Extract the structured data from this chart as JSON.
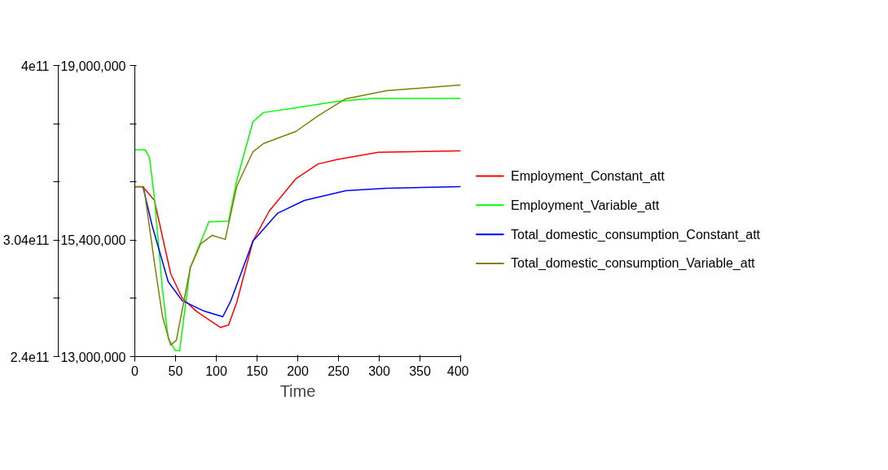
{
  "chart_data": {
    "type": "line",
    "xlabel": "Time",
    "xlim": [
      0,
      400
    ],
    "xticks": [
      0,
      50,
      100,
      150,
      200,
      250,
      300,
      350,
      400
    ],
    "ylim": [
      13000000,
      19000000
    ],
    "yticks": [
      {
        "value": 13000000,
        "label": "13,000,000"
      },
      {
        "value": 14200000,
        "label": null
      },
      {
        "value": 15400000,
        "label": "15,400,000"
      },
      {
        "value": 16600000,
        "label": null
      },
      {
        "value": 17800000,
        "label": null
      },
      {
        "value": 19000000,
        "label": "19,000,000"
      }
    ],
    "y2lim": [
      240000000000,
      400000000000
    ],
    "y2ticks": [
      {
        "value": 240000000000,
        "label": "2.4e11"
      },
      {
        "value": 272000000000,
        "label": null
      },
      {
        "value": 304000000000,
        "label": "3.04e11"
      },
      {
        "value": 336000000000,
        "label": null
      },
      {
        "value": 368000000000,
        "label": null
      },
      {
        "value": 400000000000,
        "label": "4e11"
      }
    ],
    "grid": false,
    "legend": "right",
    "line_style": "solid",
    "series": [
      {
        "name": "Employment_Constant_att",
        "color": "#ff0000",
        "x": [
          0,
          10,
          24,
          44,
          58,
          75,
          105,
          115,
          125,
          145,
          165,
          198,
          225,
          248,
          299,
          400
        ],
        "values": [
          16500000,
          16500000,
          16220000,
          14710000,
          14210000,
          13940000,
          13600000,
          13650000,
          14110000,
          15380000,
          16000000,
          16670000,
          16970000,
          17060000,
          17210000,
          17240000
        ]
      },
      {
        "name": "Employment_Variable_att",
        "color": "#00ff00",
        "x": [
          0,
          13,
          18,
          24,
          34,
          41,
          50,
          55,
          68,
          91,
          115,
          125,
          145,
          158,
          198,
          248,
          292,
          400
        ],
        "values": [
          17260000,
          17260000,
          17100000,
          16280000,
          14370000,
          13370000,
          13120000,
          13120000,
          14830000,
          15780000,
          15790000,
          16620000,
          17840000,
          18030000,
          18130000,
          18260000,
          18320000,
          18320000
        ]
      },
      {
        "name": "Total_domestic_consumption_Constant_att",
        "color": "#0000ff",
        "axis": "y2",
        "x": [
          10,
          21,
          41,
          58,
          85,
          108,
          118,
          145,
          175,
          208,
          259,
          309,
          400
        ],
        "values": [
          333400000000,
          312400000000,
          281100000000,
          270800000000,
          265000000000,
          261900000000,
          270800000000,
          303500000000,
          318700000000,
          325800000000,
          331200000000,
          332500000000,
          333400000000
        ]
      },
      {
        "name": "Total_domestic_consumption_Variable_att",
        "color": "#808000",
        "axis": "y2",
        "x": [
          0,
          11,
          24,
          34,
          44,
          51,
          68,
          81,
          95,
          111,
          125,
          145,
          158,
          198,
          225,
          259,
          309,
          400
        ],
        "values": [
          333400000000,
          333400000000,
          291800000000,
          261900000000,
          246300000000,
          249000000000,
          288700000000,
          302100000000,
          306600000000,
          304400000000,
          333400000000,
          352600000000,
          357100000000,
          363800000000,
          372300000000,
          381700000000,
          386100000000,
          389300000000
        ]
      }
    ]
  }
}
